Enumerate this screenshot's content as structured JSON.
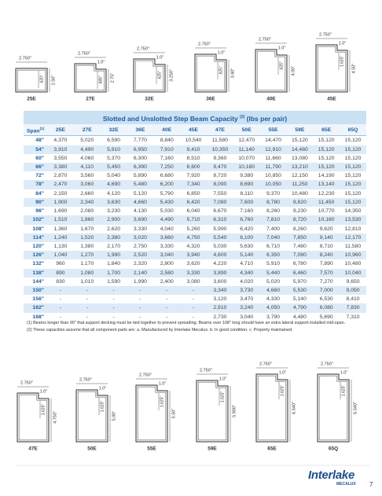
{
  "profiles_top": [
    {
      "name": "25E",
      "width": "2.750\"",
      "flange": ".620\"",
      "height": "2.50\""
    },
    {
      "name": "27E",
      "width": "2.750\"",
      "step": "1.0\"",
      "flange": ".685\"",
      "height": "2.75\""
    },
    {
      "name": "32E",
      "width": "2.750\"",
      "step": "1.0\"",
      "flange": ".625\"",
      "height": "3.250\""
    },
    {
      "name": "36E",
      "width": "2.750\"",
      "step": "1.0\"",
      "flange": ".625\"",
      "height": "3.60\""
    },
    {
      "name": "40E",
      "width": "2.750\"",
      "step": "1.0\"",
      "flange": ".625\"",
      "height": "4.00\""
    },
    {
      "name": "45E",
      "width": "2.750\"",
      "step": "1.0\"",
      "flange": "1.625\"",
      "height": "4.50\""
    }
  ],
  "table": {
    "title": "Slotted and Unslotted Step Beam Capacity",
    "title_note": "(2)",
    "title_units": "(lbs per pair)",
    "header": [
      "Span",
      "25E",
      "27E",
      "32E",
      "36E",
      "40E",
      "45E",
      "47E",
      "50E",
      "55E",
      "59E",
      "65E",
      "65Q"
    ],
    "header_note": "(1)",
    "rows": [
      [
        "48\"",
        "4,370",
        "5,020",
        "6,590",
        "7,770",
        "8,840",
        "10,540",
        "11,580",
        "12,470",
        "14,470",
        "15,120",
        "15,120",
        "15,120"
      ],
      [
        "54\"",
        "3,910",
        "4,490",
        "5,910",
        "6,950",
        "7,910",
        "9,410",
        "10,350",
        "11,140",
        "12,910",
        "14,480",
        "15,120",
        "15,120"
      ],
      [
        "60\"",
        "3,550",
        "4,060",
        "5,370",
        "6,300",
        "7,160",
        "8,510",
        "9,360",
        "10,070",
        "11,660",
        "13,080",
        "15,120",
        "15,120"
      ],
      [
        "66\"",
        "3,380",
        "4,110",
        "5,450",
        "6,390",
        "7,250",
        "8,600",
        "9,470",
        "10,180",
        "11,790",
        "13,210",
        "15,120",
        "15,120"
      ],
      [
        "72\"",
        "2,870",
        "3,560",
        "5,040",
        "5,890",
        "6,680",
        "7,920",
        "8,720",
        "9,380",
        "10,850",
        "12,150",
        "14,190",
        "15,120"
      ],
      [
        "78\"",
        "2,470",
        "3,060",
        "4,690",
        "5,480",
        "6,200",
        "7,340",
        "8,090",
        "8,690",
        "10,050",
        "11,250",
        "13,140",
        "15,120"
      ],
      [
        "84\"",
        "2,150",
        "2,660",
        "4,120",
        "5,120",
        "5,790",
        "6,850",
        "7,550",
        "8,110",
        "9,370",
        "10,480",
        "12,230",
        "15,120"
      ],
      [
        "90\"",
        "1,900",
        "2,340",
        "3,630",
        "4,660",
        "5,430",
        "6,420",
        "7,080",
        "7,600",
        "8,780",
        "9,820",
        "11,450",
        "15,120"
      ],
      [
        "96\"",
        "1,690",
        "2,080",
        "3,230",
        "4,130",
        "5,030",
        "6,040",
        "6,670",
        "7,160",
        "8,260",
        "9,230",
        "10,770",
        "14,350"
      ],
      [
        "102\"",
        "1,510",
        "1,860",
        "2,900",
        "3,690",
        "4,490",
        "5,710",
        "6,310",
        "6,760",
        "7,810",
        "8,720",
        "10,160",
        "13,530"
      ],
      [
        "108\"",
        "1,360",
        "1,670",
        "2,620",
        "3,330",
        "4,040",
        "5,260",
        "5,990",
        "6,420",
        "7,400",
        "8,260",
        "9,620",
        "12,810"
      ],
      [
        "114\"",
        "1,240",
        "1,520",
        "2,380",
        "3,020",
        "3,660",
        "4,750",
        "5,540",
        "6,100",
        "7,040",
        "7,850",
        "9,140",
        "12,170"
      ],
      [
        "120\"",
        "1,130",
        "1,380",
        "2,170",
        "2,750",
        "3,330",
        "4,320",
        "5,030",
        "5,630",
        "6,710",
        "7,480",
        "8,710",
        "11,580"
      ],
      [
        "126\"",
        "1,040",
        "1,270",
        "1,990",
        "2,520",
        "3,040",
        "3,940",
        "4,600",
        "5,140",
        "6,350",
        "7,080",
        "8,240",
        "10,960"
      ],
      [
        "132\"",
        "960",
        "1,170",
        "1,840",
        "2,320",
        "2,800",
        "3,620",
        "4,220",
        "4,710",
        "5,910",
        "6,780",
        "7,890",
        "10,480"
      ],
      [
        "138\"",
        "890",
        "1,080",
        "1,700",
        "2,140",
        "2,580",
        "3,330",
        "3,890",
        "4,340",
        "5,440",
        "6,460",
        "7,570",
        "10,040"
      ],
      [
        "144\"",
        "830",
        "1,010",
        "1,590",
        "1,990",
        "2,400",
        "3,080",
        "3,600",
        "4,020",
        "5,020",
        "5,970",
        "7,270",
        "9,650"
      ],
      [
        "150\"",
        "-",
        "-",
        "-",
        "-",
        "-",
        "-",
        "3,340",
        "3,730",
        "4,660",
        "5,530",
        "7,000",
        "9,050"
      ],
      [
        "156\"",
        "-",
        "-",
        "-",
        "-",
        "-",
        "-",
        "3,120",
        "3,470",
        "4,330",
        "5,140",
        "6,530",
        "8,410"
      ],
      [
        "162\"",
        "-",
        "-",
        "-",
        "-",
        "-",
        "-",
        "2,910",
        "3,240",
        "4,050",
        "4,790",
        "6,080",
        "7,830"
      ],
      [
        "168\"",
        "-",
        "-",
        "-",
        "-",
        "-",
        "-",
        "2,730",
        "3,040",
        "3,790",
        "4,480",
        "5,690",
        "7,310"
      ]
    ]
  },
  "notes": [
    "(1) Beams longer than 90\" that support decking must be tied together to prevent spreading. Beams over 108\" long should have an extra lateral support installed mid-span.",
    "(2) These capacities assume that all component parts are:  a. Manufactured by Interlake Mecalux.  b. In good condition.  c. Property maintained."
  ],
  "profiles_bottom": [
    {
      "name": "47E",
      "width": "2.750\"",
      "step": "1.0\"",
      "flange": "1.625\"",
      "height": "4.750\""
    },
    {
      "name": "50E",
      "width": "2.750\"",
      "step": "1.0\"",
      "flange": "1.625\"",
      "height": "5.00\""
    },
    {
      "name": "55E",
      "width": "2.750\"",
      "step": "1.0\"",
      "flange": "1.625\"",
      "height": "5.50\""
    },
    {
      "name": "59E",
      "width": "2.750\"",
      "step": "1.0\"",
      "flange": "1.625\"",
      "height": "5.900\""
    },
    {
      "name": "65E",
      "width": "2.750\"",
      "step": "1.0\"",
      "flange": "1.625\"",
      "height": "6.540\""
    },
    {
      "name": "65Q",
      "width": "2.750\"",
      "step": "1.0\"",
      "flange": "1.625\"",
      "height": "6.540\""
    }
  ],
  "footer": {
    "brand": "Interlake",
    "sub_brand": "MECALUX",
    "page_number": "7"
  }
}
